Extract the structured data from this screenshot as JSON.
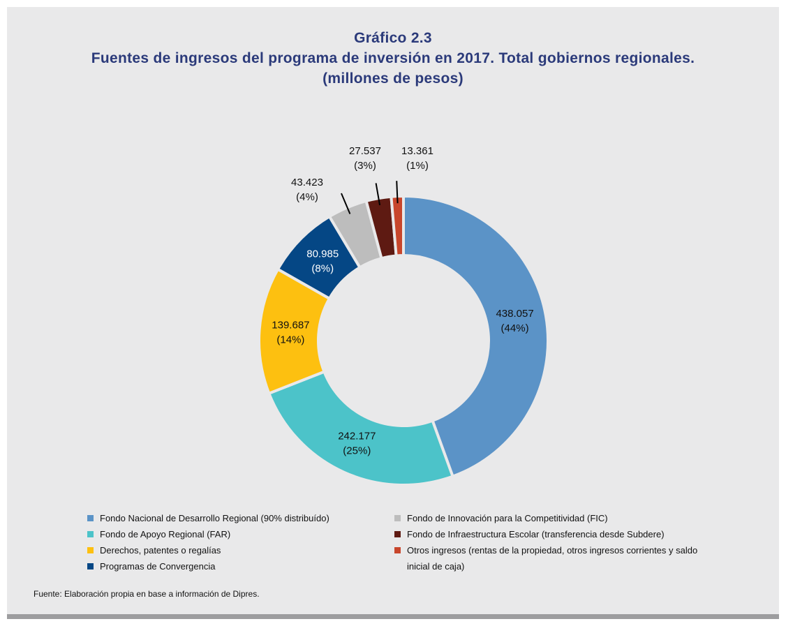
{
  "chart_data": {
    "type": "donut",
    "title": [
      "Gráfico 2.3",
      "Fuentes de ingresos del programa de inversión en 2017. Total gobiernos regionales.",
      "(millones de pesos)"
    ],
    "series": [
      {
        "name": "Fondo Nacional de Desarrollo Regional (90% distribuído)",
        "color": "#5b93c7",
        "values": [
          438057
        ],
        "value_labels": [
          "438.057"
        ],
        "percent_labels": [
          "(44%)"
        ]
      },
      {
        "name": "Fondo de Apoyo Regional (FAR)",
        "color": "#4cc3c9",
        "values": [
          242177
        ],
        "value_labels": [
          "242.177"
        ],
        "percent_labels": [
          "(25%)"
        ]
      },
      {
        "name": "Derechos, patentes o regalías",
        "color": "#fdc010",
        "values": [
          139687
        ],
        "value_labels": [
          "139.687"
        ],
        "percent_labels": [
          "(14%)"
        ]
      },
      {
        "name": "Programas de Convergencia",
        "color": "#054785",
        "values": [
          80985
        ],
        "value_labels": [
          "80.985"
        ],
        "percent_labels": [
          "(8%)"
        ]
      },
      {
        "name": "Fondo de Innovación para la Competitividad (FIC)",
        "color": "#bdbdbd",
        "values": [
          43423
        ],
        "value_labels": [
          "43.423"
        ],
        "percent_labels": [
          "(4%)"
        ]
      },
      {
        "name": "Fondo de Infraestructura Escolar (transferencia desde Subdere)",
        "color": "#5e1a12",
        "values": [
          27537
        ],
        "value_labels": [
          "27.537"
        ],
        "percent_labels": [
          "(3%)"
        ]
      },
      {
        "name": "Otros ingresos (rentas de la propiedad, otros ingresos corrientes y saldo inicial de caja)",
        "color": "#c8462c",
        "values": [
          13361
        ],
        "value_labels": [
          "13.361"
        ],
        "percent_labels": [
          "(1%)"
        ]
      }
    ],
    "source": "Fuente: Elaboración propia en base a información de Dipres."
  }
}
